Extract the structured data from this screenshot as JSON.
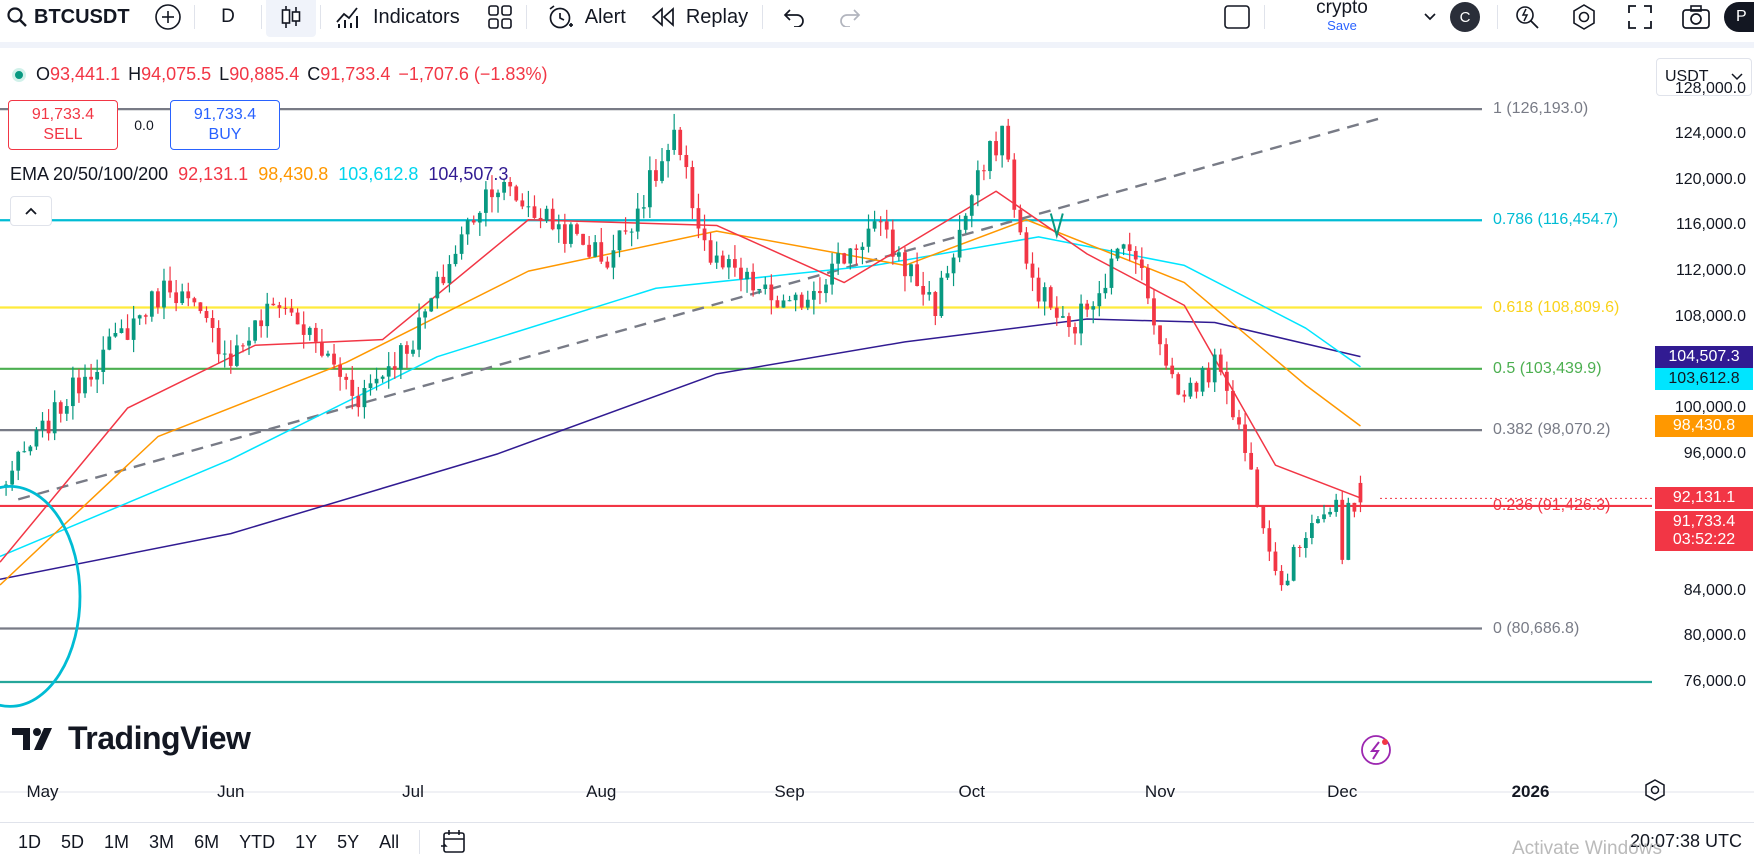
{
  "toolbar": {
    "symbol": "BTCUSDT",
    "interval": "D",
    "indicators_label": "Indicators",
    "alert_label": "Alert",
    "replay_label": "Replay",
    "layout_name": "crypto",
    "save_label": "Save",
    "avatar_letter": "C",
    "publish_letter": "P"
  },
  "legend": {
    "open_label": "O",
    "open": "93,441.1",
    "high_label": "H",
    "high": "94,075.5",
    "low_label": "L",
    "low": "90,885.4",
    "close_label": "C",
    "close": "91,733.4",
    "change": "−1,707.6 (−1.83%)"
  },
  "trade": {
    "sell_price": "91,733.4",
    "sell_label": "SELL",
    "spread": "0.0",
    "buy_price": "91,733.4",
    "buy_label": "BUY"
  },
  "ema": {
    "label": "EMA 20/50/100/200",
    "values": [
      "92,131.1",
      "98,430.8",
      "103,612.8",
      "104,507.3"
    ]
  },
  "currency_selector": "USDT",
  "brand": "TradingView",
  "price_scale_top_partial": "128,000.0",
  "price_badges": {
    "ema200": "104,507.3",
    "ema100": "103,612.8",
    "ema50": "98,430.8",
    "ema20": "92,131.1",
    "last_price": "91,733.4",
    "countdown": "03:52:22"
  },
  "bottom": {
    "ranges": [
      "1D",
      "5D",
      "1M",
      "3M",
      "6M",
      "YTD",
      "1Y",
      "5Y",
      "All"
    ],
    "clock": "20:07:38 UTC",
    "watermark": "Activate Windows"
  },
  "colors": {
    "up": "#089981",
    "down": "#f23645",
    "ema20": "#f23645",
    "ema50": "#ff9800",
    "ema100": "#00e5ff",
    "ema200": "#311b92",
    "fib_1": "#787b86",
    "fib_786": "#00bcd4",
    "fib_618": "#ffeb3b",
    "fib_5": "#4caf50",
    "fib_382": "#787b86",
    "fib_236": "#f23645",
    "fib_0": "#787b86",
    "circle": "#00bcd4"
  },
  "chart_data": {
    "type": "candlestick",
    "symbol": "BTCUSDT",
    "interval": "1D",
    "x_ticks": [
      "May",
      "Jun",
      "Jul",
      "Aug",
      "Sep",
      "Oct",
      "Nov",
      "Dec",
      "2026"
    ],
    "y_ticks": [
      76000,
      80000,
      84000,
      88000,
      92000,
      96000,
      100000,
      104000,
      108000,
      112000,
      116000,
      120000,
      124000,
      128000
    ],
    "y_tick_labels": [
      "76,000.0",
      "80,000.0",
      "84,000.0",
      "88,000.0",
      "",
      "96,000.0",
      "100,000.0",
      "",
      "108,000.0",
      "112,000.0",
      "116,000.0",
      "120,000.0",
      "124,000.0",
      "128,000.0"
    ],
    "ylim": [
      75000,
      129000
    ],
    "xlim": [
      "2025-04-24",
      "2026-01-21"
    ],
    "fib_levels": [
      {
        "ratio": "1",
        "price": 126193.0,
        "label": "1 (126,193.0)"
      },
      {
        "ratio": "0.786",
        "price": 116454.7,
        "label": "0.786 (116,454.7)"
      },
      {
        "ratio": "0.618",
        "price": 108809.6,
        "label": "0.618 (108,809.6)"
      },
      {
        "ratio": "0.5",
        "price": 103439.9,
        "label": "0.5 (103,439.9)"
      },
      {
        "ratio": "0.382",
        "price": 98070.2,
        "label": "0.382 (98,070.2)"
      },
      {
        "ratio": "0.236",
        "price": 91426.3,
        "label": "0.236 (91,426.3)"
      },
      {
        "ratio": "0",
        "price": 80686.8,
        "label": "0 (80,686.8)"
      }
    ],
    "trendline": [
      {
        "date": "2025-04-27",
        "price": 92000
      },
      {
        "date": "2025-12-08",
        "price": 125500
      }
    ],
    "bottom_line": 76000,
    "anchors": [
      {
        "date": "2025-04-24",
        "close": 93000
      },
      {
        "date": "2025-05-08",
        "close": 103000
      },
      {
        "date": "2025-05-22",
        "close": 111000
      },
      {
        "date": "2025-06-01",
        "close": 104500
      },
      {
        "date": "2025-06-09",
        "close": 109500
      },
      {
        "date": "2025-06-22",
        "close": 101000
      },
      {
        "date": "2025-07-01",
        "close": 106000
      },
      {
        "date": "2025-07-10",
        "close": 116000
      },
      {
        "date": "2025-07-14",
        "close": 119800
      },
      {
        "date": "2025-08-02",
        "close": 113000
      },
      {
        "date": "2025-08-13",
        "close": 123300
      },
      {
        "date": "2025-08-19",
        "close": 113000
      },
      {
        "date": "2025-09-01",
        "close": 108500
      },
      {
        "date": "2025-09-15",
        "close": 116000
      },
      {
        "date": "2025-09-25",
        "close": 109000
      },
      {
        "date": "2025-10-01",
        "close": 118500
      },
      {
        "date": "2025-10-06",
        "close": 124500
      },
      {
        "date": "2025-10-10",
        "close": 112000
      },
      {
        "date": "2025-10-17",
        "close": 106500
      },
      {
        "date": "2025-10-27",
        "close": 115000
      },
      {
        "date": "2025-11-04",
        "close": 101000
      },
      {
        "date": "2025-11-11",
        "close": 104000
      },
      {
        "date": "2025-11-21",
        "close": 84500
      },
      {
        "date": "2025-11-26",
        "close": 90500
      },
      {
        "date": "2025-11-30",
        "close": 91000
      },
      {
        "date": "2025-12-01",
        "close": 86300
      },
      {
        "date": "2025-12-02",
        "close": 91500
      },
      {
        "date": "2025-12-04",
        "close": 91733.4
      }
    ],
    "ema20_path": [
      [
        "2025-04-24",
        86500
      ],
      [
        "2025-05-15",
        100000
      ],
      [
        "2025-06-05",
        105500
      ],
      [
        "2025-06-26",
        106000
      ],
      [
        "2025-07-20",
        116500
      ],
      [
        "2025-08-20",
        116000
      ],
      [
        "2025-09-10",
        111000
      ],
      [
        "2025-10-05",
        119000
      ],
      [
        "2025-10-20",
        113500
      ],
      [
        "2025-11-05",
        109000
      ],
      [
        "2025-11-20",
        95000
      ],
      [
        "2025-12-04",
        92131.1
      ]
    ],
    "ema50_path": [
      [
        "2025-04-24",
        84500
      ],
      [
        "2025-05-20",
        97500
      ],
      [
        "2025-06-20",
        104000
      ],
      [
        "2025-07-20",
        112000
      ],
      [
        "2025-08-20",
        115500
      ],
      [
        "2025-09-20",
        112500
      ],
      [
        "2025-10-10",
        116500
      ],
      [
        "2025-11-05",
        111000
      ],
      [
        "2025-11-25",
        102000
      ],
      [
        "2025-12-04",
        98430.8
      ]
    ],
    "ema100_path": [
      [
        "2025-04-24",
        87000
      ],
      [
        "2025-06-01",
        95500
      ],
      [
        "2025-07-05",
        104500
      ],
      [
        "2025-08-10",
        110500
      ],
      [
        "2025-09-15",
        112500
      ],
      [
        "2025-10-12",
        115000
      ],
      [
        "2025-11-05",
        112500
      ],
      [
        "2025-11-25",
        107000
      ],
      [
        "2025-12-04",
        103612.8
      ]
    ],
    "ema200_path": [
      [
        "2025-04-24",
        85000
      ],
      [
        "2025-06-01",
        89000
      ],
      [
        "2025-07-15",
        96000
      ],
      [
        "2025-08-20",
        103000
      ],
      [
        "2025-09-20",
        105800
      ],
      [
        "2025-10-20",
        107800
      ],
      [
        "2025-11-10",
        107500
      ],
      [
        "2025-12-04",
        104507.3
      ]
    ],
    "ema_final": {
      "ema20": 92131.1,
      "ema50": 98430.8,
      "ema100": 103612.8,
      "ema200": 104507.3
    },
    "last": {
      "open": 93441.1,
      "high": 94075.5,
      "low": 90885.4,
      "close": 91733.4
    },
    "grid": false
  }
}
